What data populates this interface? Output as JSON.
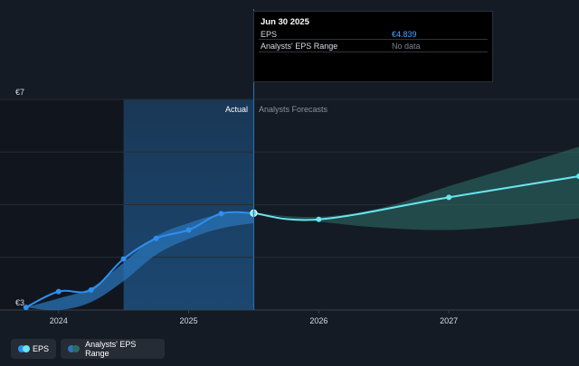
{
  "tooltip": {
    "title": "Jun 30 2025",
    "rows": [
      {
        "label": "EPS",
        "value": "€4.839",
        "color": "#4aa8ff"
      },
      {
        "label": "Analysts' EPS Range",
        "value": "No data",
        "color": "#7b8390"
      }
    ]
  },
  "sections": {
    "actual": "Actual",
    "forecast": "Analysts Forecasts"
  },
  "legend": {
    "eps": "EPS",
    "range": "Analysts' EPS Range"
  },
  "colors": {
    "actual_line": "#2f8ff0",
    "forecast_line": "#69e6f0",
    "band_actual": "#2a74b8",
    "band_forecast": "#2d6a64",
    "grid": "#262c35"
  },
  "chart_data": {
    "type": "line",
    "ylim": [
      3,
      7
    ],
    "y_ticks": [
      {
        "value": 7,
        "label": "€7"
      },
      {
        "value": 3,
        "label": "€3"
      }
    ],
    "x_ticks": [
      {
        "value": 2024.0,
        "label": "2024"
      },
      {
        "value": 2025.0,
        "label": "2025"
      },
      {
        "value": 2026.0,
        "label": "2026"
      },
      {
        "value": 2027.0,
        "label": "2027"
      }
    ],
    "x_range": [
      2023.55,
      2028.0
    ],
    "highlight_range": [
      2024.5,
      2025.5
    ],
    "actual_end": 2025.5,
    "series": [
      {
        "name": "EPS",
        "kind": "actual",
        "points": [
          [
            2023.75,
            3.05
          ],
          [
            2024.0,
            3.35
          ],
          [
            2024.25,
            3.38
          ],
          [
            2024.5,
            3.97
          ],
          [
            2024.75,
            4.36
          ],
          [
            2025.0,
            4.52
          ],
          [
            2025.25,
            4.83
          ],
          [
            2025.5,
            4.839
          ]
        ]
      },
      {
        "name": "EPS",
        "kind": "forecast",
        "points": [
          [
            2025.5,
            4.839
          ],
          [
            2026.0,
            4.72
          ],
          [
            2027.0,
            5.14
          ],
          [
            2028.0,
            5.54
          ]
        ]
      }
    ],
    "range": {
      "name": "Analysts' EPS Range",
      "actual_upper": [
        [
          2023.75,
          3.05
        ],
        [
          2024.0,
          3.22
        ],
        [
          2024.25,
          3.42
        ],
        [
          2024.5,
          3.9
        ],
        [
          2024.75,
          4.4
        ],
        [
          2025.0,
          4.65
        ],
        [
          2025.25,
          4.82
        ],
        [
          2025.5,
          4.84
        ]
      ],
      "actual_lower": [
        [
          2023.75,
          3.05
        ],
        [
          2024.0,
          3.0
        ],
        [
          2024.25,
          3.15
        ],
        [
          2024.5,
          3.55
        ],
        [
          2024.75,
          4.05
        ],
        [
          2025.0,
          4.35
        ],
        [
          2025.25,
          4.55
        ],
        [
          2025.5,
          4.65
        ]
      ],
      "forecast_upper": [
        [
          2025.5,
          4.84
        ],
        [
          2026.0,
          4.77
        ],
        [
          2026.5,
          4.95
        ],
        [
          2027.0,
          5.35
        ],
        [
          2027.5,
          5.72
        ],
        [
          2028.0,
          6.1
        ]
      ],
      "forecast_lower": [
        [
          2025.5,
          4.84
        ],
        [
          2026.0,
          4.68
        ],
        [
          2026.5,
          4.56
        ],
        [
          2027.0,
          4.52
        ],
        [
          2027.5,
          4.6
        ],
        [
          2028.0,
          4.74
        ]
      ]
    }
  }
}
